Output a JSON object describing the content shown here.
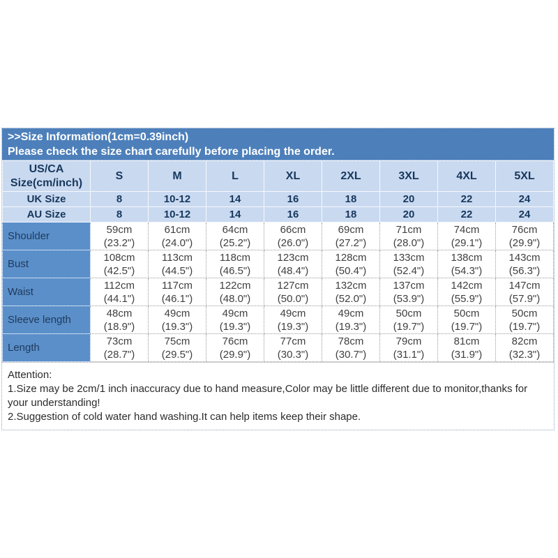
{
  "banner": {
    "line1": ">>Size Information(1cm=0.39inch)",
    "line2": "Please check the size chart carefully before placing the order."
  },
  "size_chart": {
    "corner_label_line1": "US/CA",
    "corner_label_line2": "Size(cm/inch)",
    "sizes": [
      "S",
      "M",
      "L",
      "XL",
      "2XL",
      "3XL",
      "4XL",
      "5XL"
    ],
    "uk_label": "UK Size",
    "uk_values": [
      "8",
      "10-12",
      "14",
      "16",
      "18",
      "20",
      "22",
      "24"
    ],
    "au_label": "AU Size",
    "au_values": [
      "8",
      "10-12",
      "14",
      "16",
      "18",
      "20",
      "22",
      "24"
    ],
    "rows": [
      {
        "label": "Shoulder",
        "cm": [
          "59cm",
          "61cm",
          "64cm",
          "66cm",
          "69cm",
          "71cm",
          "74cm",
          "76cm"
        ],
        "inch": [
          "(23.2\")",
          "(24.0\")",
          "(25.2\")",
          "(26.0\")",
          "(27.2\")",
          "(28.0\")",
          "(29.1\")",
          "(29.9\")"
        ]
      },
      {
        "label": "Bust",
        "cm": [
          "108cm",
          "113cm",
          "118cm",
          "123cm",
          "128cm",
          "133cm",
          "138cm",
          "143cm"
        ],
        "inch": [
          "(42.5\")",
          "(44.5\")",
          "(46.5\")",
          "(48.4\")",
          "(50.4\")",
          "(52.4\")",
          "(54.3\")",
          "(56.3\")"
        ]
      },
      {
        "label": "Waist",
        "cm": [
          "112cm",
          "117cm",
          "122cm",
          "127cm",
          "132cm",
          "137cm",
          "142cm",
          "147cm"
        ],
        "inch": [
          "(44.1\")",
          "(46.1\")",
          "(48.0\")",
          "(50.0\")",
          "(52.0\")",
          "(53.9\")",
          "(55.9\")",
          "(57.9\")"
        ]
      },
      {
        "label": "Sleeve length",
        "cm": [
          "48cm",
          "49cm",
          "49cm",
          "49cm",
          "49cm",
          "50cm",
          "50cm",
          "50cm"
        ],
        "inch": [
          "(18.9\")",
          "(19.3\")",
          "(19.3\")",
          "(19.3\")",
          "(19.3\")",
          "(19.7\")",
          "(19.7\")",
          "(19.7\")"
        ]
      },
      {
        "label": "Length",
        "cm": [
          "73cm",
          "75cm",
          "76cm",
          "77cm",
          "78cm",
          "79cm",
          "81cm",
          "82cm"
        ],
        "inch": [
          "(28.7\")",
          "(29.5\")",
          "(29.9\")",
          "(30.3\")",
          "(30.7\")",
          "(31.1\")",
          "(31.9\")",
          "(32.3\")"
        ]
      }
    ]
  },
  "attention": {
    "title": "Attention:",
    "line1": "1.Size may be 2cm/1 inch inaccuracy due to hand measure,Color may be little different due to monitor,thanks for your understanding!",
    "line2": "2.Suggestion of cold water hand washing.It can help items keep their shape."
  },
  "colors": {
    "banner_bg": "#4d80ba",
    "header_row_bg": "#c9daf0",
    "label_column_bg": "#5b8fc9",
    "header_text": "#17375d",
    "data_text": "#3f3f3f"
  }
}
